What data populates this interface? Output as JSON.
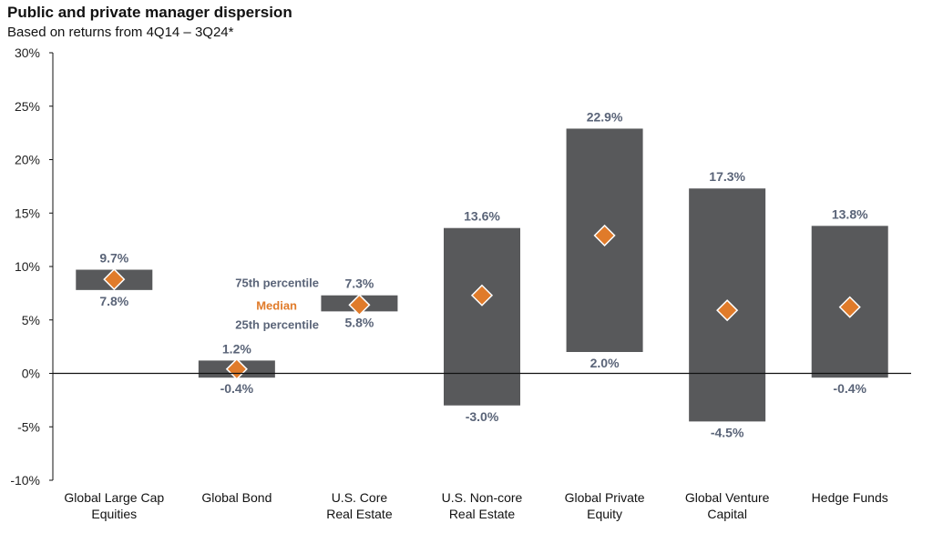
{
  "title": "Public and private manager dispersion",
  "subtitle": "Based on returns from 4Q14 – 3Q24*",
  "colors": {
    "bar": "#58595b",
    "median": "#e07b2a",
    "value_label": "#5a6478",
    "axis": "#111111"
  },
  "legend": {
    "upper": "75th percentile",
    "median": "Median",
    "lower": "25th percentile"
  },
  "chart_data": {
    "type": "bar",
    "title": "Public and private manager dispersion",
    "subtitle": "Based on returns from 4Q14 – 3Q24*",
    "ylim": [
      -10,
      30
    ],
    "yticks": [
      -10,
      -5,
      0,
      5,
      10,
      15,
      20,
      25,
      30
    ],
    "ytick_labels": [
      "-10%",
      "-5%",
      "0%",
      "5%",
      "10%",
      "15%",
      "20%",
      "25%",
      "30%"
    ],
    "grid": false,
    "categories": [
      {
        "lines": [
          "Global Large Cap",
          "Equities"
        ],
        "p25": 7.8,
        "p75": 9.7,
        "median": 8.8,
        "p25_label": "7.8%",
        "p75_label": "9.7%"
      },
      {
        "lines": [
          "Global Bond"
        ],
        "p25": -0.4,
        "p75": 1.2,
        "median": 0.4,
        "p25_label": "-0.4%",
        "p75_label": "1.2%"
      },
      {
        "lines": [
          "U.S. Core",
          "Real Estate"
        ],
        "p25": 5.8,
        "p75": 7.3,
        "median": 6.4,
        "p25_label": "5.8%",
        "p75_label": "7.3%"
      },
      {
        "lines": [
          "U.S. Non-core",
          "Real Estate"
        ],
        "p25": -3.0,
        "p75": 13.6,
        "median": 7.3,
        "p25_label": "-3.0%",
        "p75_label": "13.6%"
      },
      {
        "lines": [
          "Global Private",
          "Equity"
        ],
        "p25": 2.0,
        "p75": 22.9,
        "median": 12.9,
        "p25_label": "2.0%",
        "p75_label": "22.9%"
      },
      {
        "lines": [
          "Global Venture",
          "Capital"
        ],
        "p25": -4.5,
        "p75": 17.3,
        "median": 5.9,
        "p25_label": "-4.5%",
        "p75_label": "17.3%"
      },
      {
        "lines": [
          "Hedge Funds"
        ],
        "p25": -0.4,
        "p75": 13.8,
        "median": 6.2,
        "p25_label": "-0.4%",
        "p75_label": "13.8%"
      }
    ]
  }
}
